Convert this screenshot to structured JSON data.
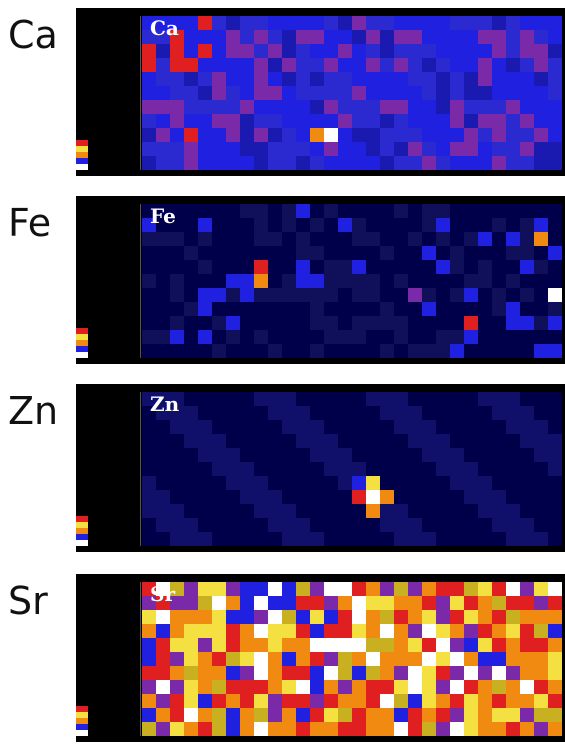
{
  "panels": [
    {
      "element": "Ca",
      "inner_label": "Ca",
      "type": "ca"
    },
    {
      "element": "Fe",
      "inner_label": "Fe",
      "type": "fe"
    },
    {
      "element": "Zn",
      "inner_label": "Zn",
      "type": "zn"
    },
    {
      "element": "Sr",
      "inner_label": "Sr",
      "type": "sr"
    }
  ],
  "colors": {
    "background": "#000000",
    "low": "#00004a",
    "mid": "#2020e0",
    "purple": "#7a2aa8",
    "red": "#e02020",
    "orange": "#f08a10",
    "yellow": "#f4e040",
    "white": "#ffffff"
  }
}
